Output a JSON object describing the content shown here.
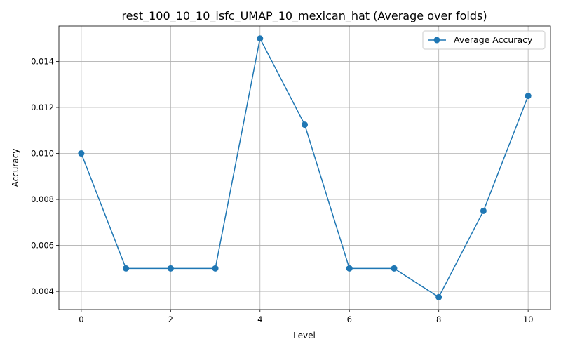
{
  "chart_data": {
    "type": "line",
    "title": "rest_100_10_10_isfc_UMAP_10_mexican_hat (Average over folds)",
    "xlabel": "Level",
    "ylabel": "Accuracy",
    "xlim": [
      -0.5,
      10.5
    ],
    "ylim": [
      0.00321,
      0.01554
    ],
    "xticks": [
      0,
      2,
      4,
      6,
      8,
      10
    ],
    "xtick_labels": [
      "0",
      "2",
      "4",
      "6",
      "8",
      "10"
    ],
    "yticks": [
      0.004,
      0.006,
      0.008,
      0.01,
      0.012,
      0.014
    ],
    "ytick_labels": [
      "0.004",
      "0.006",
      "0.008",
      "0.010",
      "0.012",
      "0.014"
    ],
    "grid": true,
    "legend_position": "top-right",
    "x": [
      0,
      1,
      2,
      3,
      4,
      5,
      6,
      7,
      8,
      9,
      10
    ],
    "series": [
      {
        "name": "Average Accuracy",
        "color": "#1f77b4",
        "marker": "circle",
        "values": [
          0.01,
          0.005,
          0.005,
          0.005,
          0.015,
          0.01125,
          0.005,
          0.005,
          0.00375,
          0.0075,
          0.0125
        ]
      }
    ]
  }
}
